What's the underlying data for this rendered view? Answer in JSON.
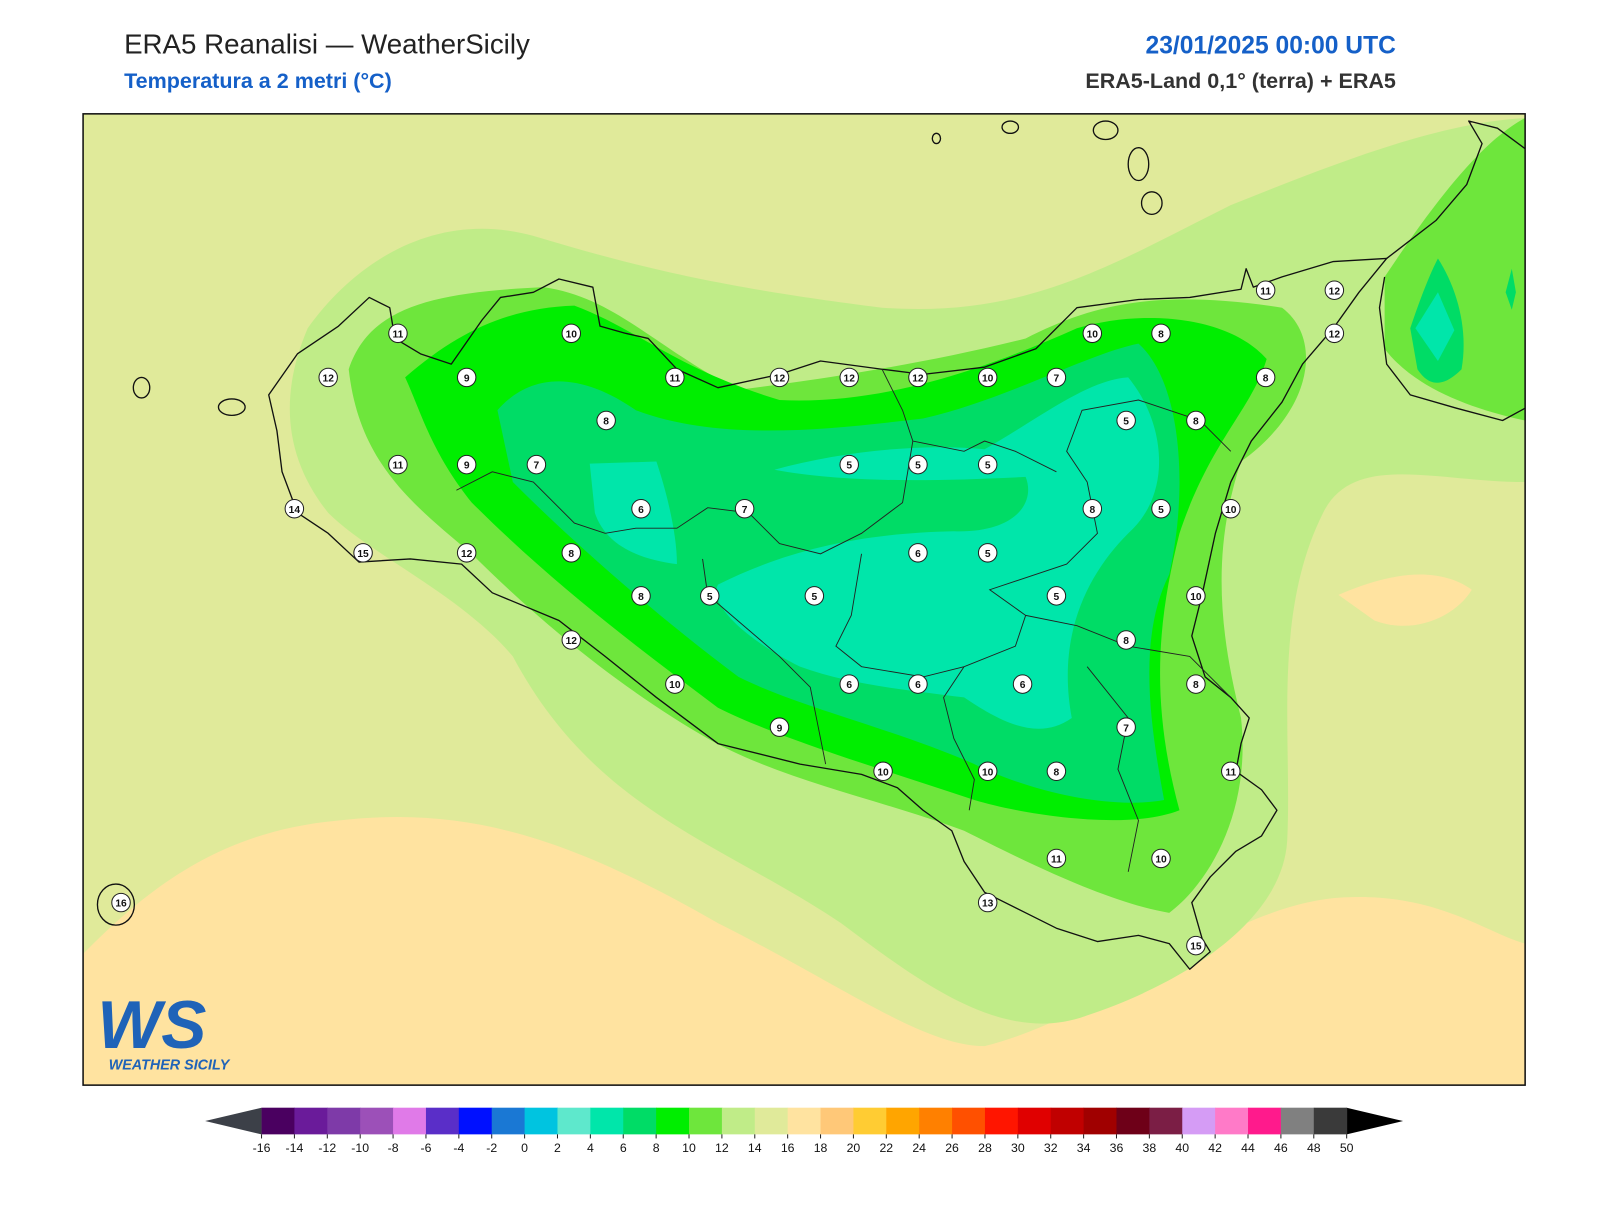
{
  "header": {
    "title": "ERA5 Reanalisi — WeatherSicily",
    "subtitle": "Temperatura a 2 metri (°C)",
    "date": "23/01/2025 00:00 UTC",
    "source": "ERA5-Land 0,1° (terra) + ERA5"
  },
  "stations": [
    11,
    10,
    10,
    8,
    12,
    11,
    12,
    12,
    9,
    11,
    12,
    12,
    12,
    10,
    7,
    8,
    8,
    5,
    8,
    11,
    9,
    7,
    5,
    5,
    5,
    14,
    6,
    7,
    8,
    5,
    10,
    15,
    12,
    8,
    6,
    5,
    8,
    5,
    5,
    5,
    10,
    12,
    8,
    10,
    6,
    6,
    6,
    8,
    9,
    7,
    10,
    10,
    8,
    11,
    11,
    10,
    16,
    13,
    15
  ],
  "colorbar": {
    "ticks": [
      -16,
      -14,
      -12,
      -10,
      -8,
      -6,
      -4,
      -2,
      0,
      2,
      4,
      6,
      8,
      10,
      12,
      14,
      16,
      18,
      20,
      22,
      24,
      26,
      28,
      30,
      32,
      34,
      36,
      38,
      40,
      42,
      44,
      46,
      48,
      50
    ],
    "colors": [
      "#4a0060",
      "#6a1b9a",
      "#7e3aa8",
      "#9c50b8",
      "#e07ae8",
      "#5a2ec8",
      "#0010ff",
      "#1a78d4",
      "#00c4e0",
      "#5ee8cc",
      "#00e6aa",
      "#00dc66",
      "#00ee00",
      "#6ee63c",
      "#c0ec88",
      "#e0ea9a",
      "#ffe3a0",
      "#ffc878",
      "#ffcc33",
      "#ffa500",
      "#ff8000",
      "#ff5000",
      "#ff1500",
      "#e00000",
      "#c00000",
      "#a00000",
      "#6e0018",
      "#7b1e45",
      "#d59cf5",
      "#ff7ac8",
      "#ff1a8c",
      "#808080",
      "#3a3a3a"
    ],
    "under": "#3c4048",
    "over": "#000000"
  },
  "logo": {
    "mark": "WS",
    "name": "WEATHER SICILY"
  }
}
